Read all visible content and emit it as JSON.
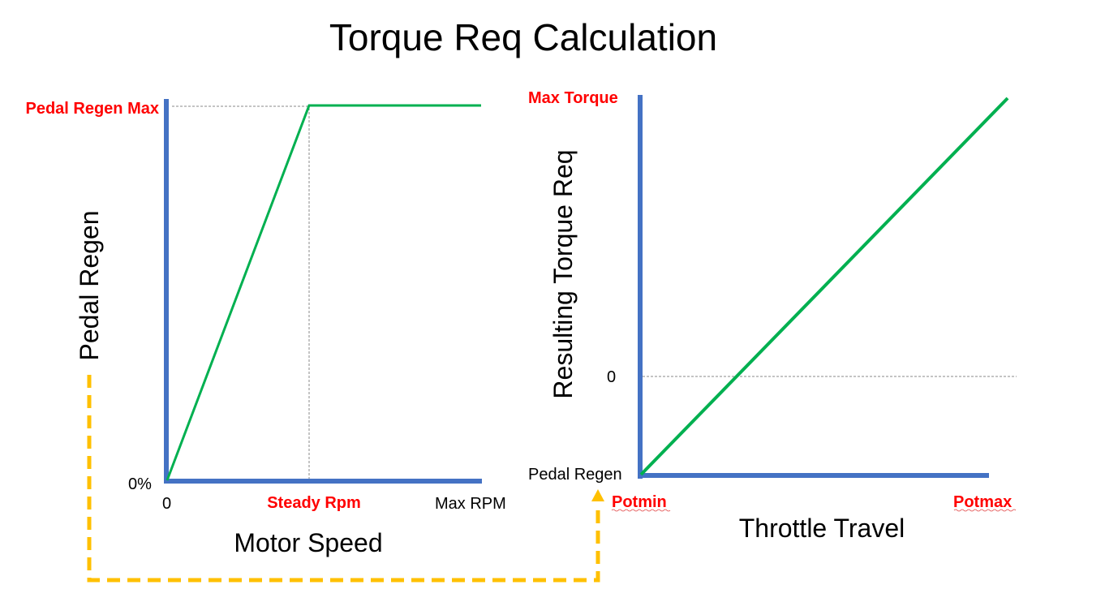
{
  "title": "Torque Req Calculation",
  "colors": {
    "axis": "#4472c4",
    "line": "#00b050",
    "highlight": "#ff0000",
    "arrow": "#ffc000"
  },
  "left_chart": {
    "y_label": "Pedal Regen",
    "x_label": "Motor Speed",
    "y_top_label": "Pedal Regen Max",
    "y_bottom_label": "0%",
    "x_ticks": [
      "0",
      "Steady Rpm",
      "Max RPM"
    ]
  },
  "right_chart": {
    "y_label": "Resulting Torque Req",
    "x_label": "Throttle Travel",
    "y_top_label": "Max Torque",
    "y_zero_label": "0",
    "y_bottom_label": "Pedal Regen",
    "x_ticks": [
      "Potmin",
      "Potmax"
    ]
  }
}
